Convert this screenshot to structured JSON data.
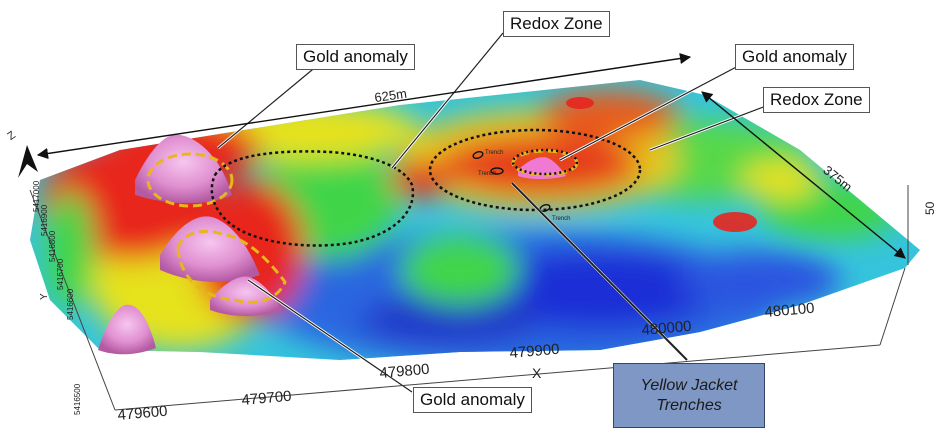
{
  "callouts": {
    "gold_left_top": "Gold anomaly",
    "redox_top": "Redox Zone",
    "gold_right_top": "Gold anomaly",
    "redox_right": "Redox Zone",
    "gold_bottom": "Gold anomaly",
    "trenches_line1": "Yellow Jacket",
    "trenches_line2": "Trenches"
  },
  "dimensions": {
    "length": "625m",
    "width": "375m"
  },
  "axes": {
    "x_label": "X",
    "y_label": "Y",
    "z_label": "Z",
    "x_ticks": [
      "479600",
      "479700",
      "479800",
      "479900",
      "480000",
      "480100"
    ],
    "y_ticks": [
      "5416500",
      "5416600",
      "5416700",
      "5416800",
      "5416900",
      "5417000"
    ],
    "z_tick": "50"
  },
  "trench_labels": [
    "Trench",
    "Trench",
    "Trench"
  ],
  "colors": {
    "low": "#1a2fd6",
    "mid_low": "#1fb5e0",
    "mid": "#35d33a",
    "mid_high": "#e6e21c",
    "high": "#e8251f",
    "anomaly": "#e08fd0",
    "redox_outline": "#111111",
    "gold_outline": "#e8b61c",
    "legend_box": "#7f97c4"
  }
}
